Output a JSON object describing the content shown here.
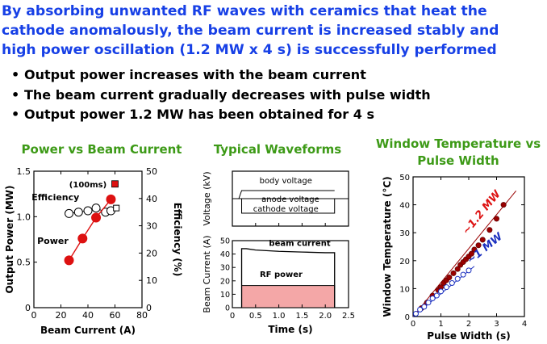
{
  "headline": {
    "line1": "By absorbing unwanted RF waves with ceramics that heat the",
    "line2": "cathode anomalously, the beam current is increased stably and",
    "line3": "high power oscillation (1.2 MW x 4 s) is successfully performed"
  },
  "bullets": [
    "Output power increases with the beam current",
    "The beam current gradually decreases with pulse width",
    "Output power 1.2 MW has been obtained for 4 s"
  ],
  "colors": {
    "headline": "#1740e6",
    "title": "#3d9a17",
    "red": "#dd1111",
    "darkred": "#990000",
    "blue": "#1a2fbf",
    "rf_fill": "#f4a7a7"
  },
  "chart_data": [
    {
      "type": "scatter",
      "title": "Power vs Beam Current",
      "xlabel": "Beam Current  (A)",
      "ylabel": "Output Power  (MW)",
      "y2label": "Efficiency  (%)",
      "xlim": [
        0,
        80
      ],
      "ylim": [
        0,
        1.5
      ],
      "y2lim": [
        0,
        50
      ],
      "xticks": [
        "0",
        "20",
        "40",
        "60",
        "80"
      ],
      "yticks": [
        "0",
        "0.5",
        "1.0",
        "1.5"
      ],
      "y2ticks": [
        "0",
        "10",
        "20",
        "30",
        "40",
        "50"
      ],
      "series": [
        {
          "name": "Power",
          "axis": "left",
          "marker": "filled-circle",
          "line": true,
          "x": [
            26,
            36,
            46,
            57
          ],
          "y": [
            0.52,
            0.76,
            0.99,
            1.19
          ]
        },
        {
          "name": "Efficiency",
          "axis": "right",
          "marker": "open-circle",
          "line": true,
          "x": [
            26,
            33,
            40,
            46,
            53,
            57
          ],
          "y": [
            34.5,
            35.0,
            35.5,
            36.5,
            35.0,
            35.5
          ]
        },
        {
          "name": "(100ms)",
          "axis": "left",
          "marker": "filled-square",
          "x": [
            60
          ],
          "y": [
            1.36
          ]
        },
        {
          "name": "(100ms) efficiency",
          "axis": "right",
          "marker": "open-square",
          "x": [
            61
          ],
          "y": [
            36.5
          ]
        }
      ],
      "annotations": [
        "(100ms)",
        "Efficiency",
        "Power"
      ]
    },
    {
      "type": "line",
      "title": "Typical Waveforms",
      "xlabel": "Time  (s)",
      "xlim": [
        0,
        2.5
      ],
      "xticks": [
        "0",
        "0.5",
        "1.0",
        "1.5",
        "2.0",
        "2.5"
      ],
      "upper": {
        "ylabel": "Voltage (kV)",
        "series_labels": [
          "body voltage",
          "anode voltage",
          "cathode voltage"
        ],
        "on": 0.2,
        "off": 2.2
      },
      "lower": {
        "ylabel": "Beam Current (A)",
        "ylim": [
          0,
          50
        ],
        "yticks": [
          "0",
          "10",
          "20",
          "30",
          "40",
          "50"
        ],
        "series": [
          {
            "name": "beam current",
            "x": [
              0.2,
              0.3,
              0.5,
              1.0,
              1.5,
              2.0,
              2.2
            ],
            "y": [
              44,
              44,
              43,
              42,
              41.5,
              41,
              41
            ]
          },
          {
            "name": "RF power",
            "x": [
              0.2,
              2.2
            ],
            "y": [
              16.5,
              16.5
            ]
          }
        ]
      }
    },
    {
      "type": "scatter",
      "title": "Window Temperature vs Pulse Width",
      "xlabel": "Pulse Width  (s)",
      "ylabel": "Window Temperature  (°C)",
      "xlim": [
        0,
        4
      ],
      "ylim": [
        0,
        50
      ],
      "xticks": [
        "0",
        "1",
        "2",
        "3",
        "4"
      ],
      "yticks": [
        "0",
        "10",
        "20",
        "30",
        "40",
        "50"
      ],
      "series": [
        {
          "name": "~1.2 MW",
          "color": "darkred",
          "x": [
            0.3,
            0.5,
            0.7,
            0.9,
            1.0,
            1.1,
            1.2,
            1.3,
            1.45,
            1.6,
            1.7,
            1.8,
            1.9,
            2.0,
            2.1,
            2.2,
            2.35,
            2.5,
            2.75,
            3.0,
            3.25
          ],
          "y": [
            3,
            5,
            7.5,
            9.5,
            10.5,
            12,
            13,
            14,
            15.5,
            17,
            18.5,
            19.5,
            20.5,
            21.5,
            22.5,
            24,
            25.5,
            27.5,
            31,
            35,
            40
          ],
          "fit": [
            [
              0,
              0
            ],
            [
              3.7,
              45
            ]
          ]
        },
        {
          "name": "~1 MW",
          "color": "blue",
          "x": [
            0.1,
            0.25,
            0.4,
            0.55,
            0.7,
            0.85,
            1.0,
            1.2,
            1.4,
            1.6,
            1.8,
            2.0
          ],
          "y": [
            1,
            2.5,
            3.5,
            5,
            6.5,
            7.5,
            9,
            10.5,
            12,
            13.5,
            15,
            16.5
          ],
          "fit": [
            [
              0,
              0
            ],
            [
              2.2,
              18
            ]
          ]
        }
      ]
    }
  ]
}
